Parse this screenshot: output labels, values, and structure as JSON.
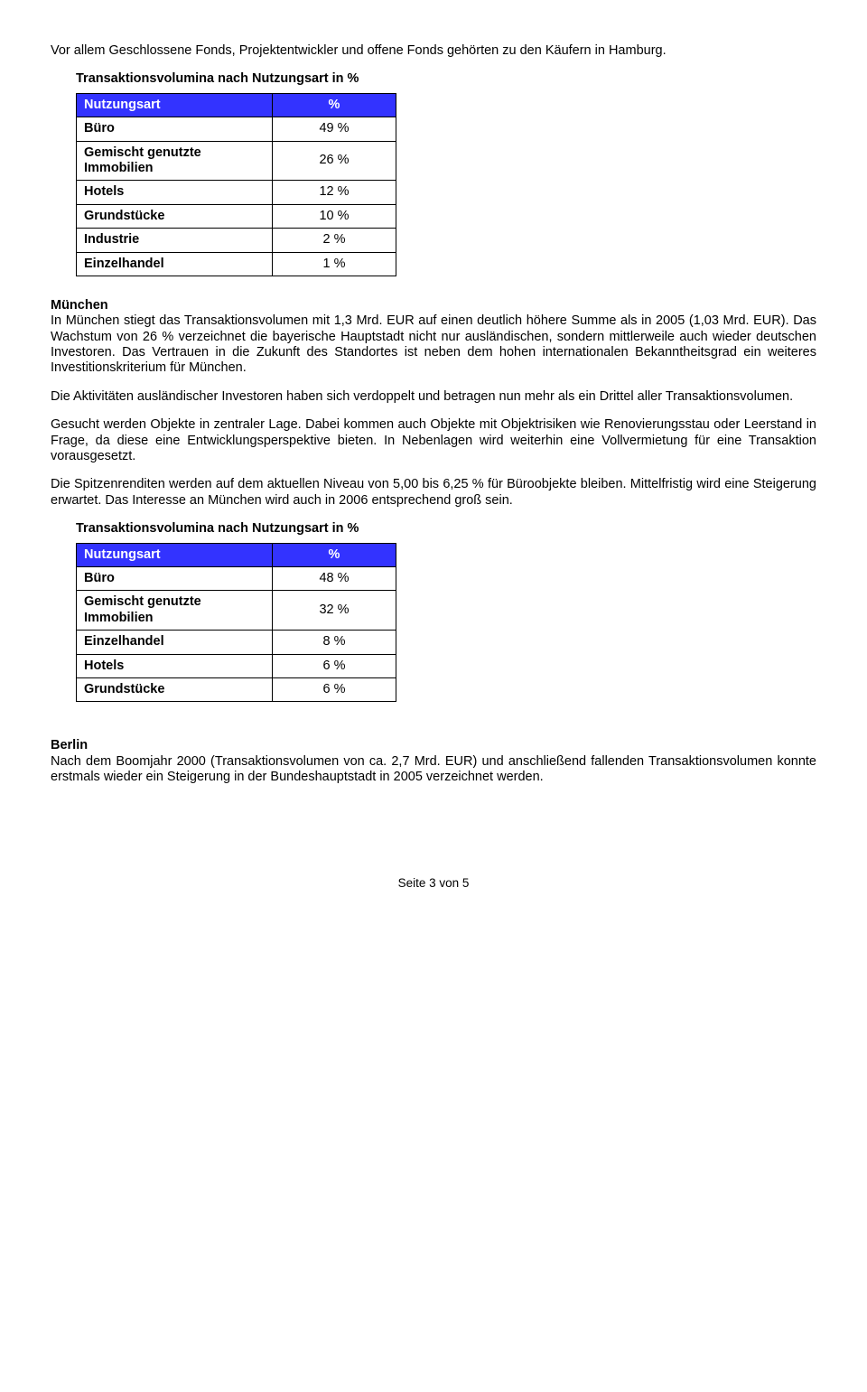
{
  "p1": "Vor allem Geschlossene Fonds, Projektentwickler und offene Fonds gehörten zu den Käufern in Hamburg.",
  "table1": {
    "title": "Transaktionsvolumina nach Nutzungsart in %",
    "col1": "Nutzungsart",
    "col2": "%",
    "col1_width": 200,
    "col2_width": 120,
    "rows": [
      {
        "label": "Büro",
        "value": "49 %"
      },
      {
        "label": "Gemischt genutzte Immobilien",
        "value": "26 %"
      },
      {
        "label": "Hotels",
        "value": "12 %"
      },
      {
        "label": "Grundstücke",
        "value": "10 %"
      },
      {
        "label": "Industrie",
        "value": "2 %"
      },
      {
        "label": "Einzelhandel",
        "value": "1 %"
      }
    ],
    "header_bg": "#3333ff",
    "header_fg": "#ffffff",
    "border_color": "#000000"
  },
  "munich_heading": "München",
  "p2": "In München stiegt das Transaktionsvolumen mit 1,3 Mrd. EUR auf einen deutlich höhere Summe als in 2005 (1,03 Mrd. EUR). Das Wachstum von 26 % verzeichnet die bayerische Hauptstadt nicht nur ausländischen, sondern mittlerweile auch wieder deutschen Investoren. Das Vertrauen in die Zukunft des Standortes ist neben dem hohen internationalen Bekanntheitsgrad ein weiteres Investitionskriterium für München.",
  "p3": "Die Aktivitäten ausländischer Investoren haben sich verdoppelt und betragen nun mehr als ein Drittel aller Transaktionsvolumen.",
  "p4": "Gesucht werden Objekte in zentraler Lage. Dabei kommen auch Objekte mit Objektrisiken wie Renovierungsstau oder Leerstand in Frage, da diese eine Entwicklungsperspektive bieten. In Nebenlagen wird weiterhin eine Vollvermietung für eine Transaktion vorausgesetzt.",
  "p5": "Die Spitzenrenditen werden auf dem aktuellen Niveau von 5,00 bis 6,25 % für Büroobjekte bleiben. Mittelfristig wird eine Steigerung erwartet. Das Interesse an München wird auch in 2006 entsprechend groß sein.",
  "table2": {
    "title": "Transaktionsvolumina nach Nutzungsart in %",
    "col1": "Nutzungsart",
    "col2": "%",
    "col1_width": 200,
    "col2_width": 120,
    "rows": [
      {
        "label": "Büro",
        "value": "48 %"
      },
      {
        "label": "Gemischt genutzte Immobilien",
        "value": "32 %"
      },
      {
        "label": "Einzelhandel",
        "value": "8 %"
      },
      {
        "label": "Hotels",
        "value": "6 %"
      },
      {
        "label": "Grundstücke",
        "value": "6 %"
      }
    ],
    "header_bg": "#3333ff",
    "header_fg": "#ffffff",
    "border_color": "#000000"
  },
  "berlin_heading": "Berlin",
  "p6": "Nach dem Boomjahr 2000 (Transaktionsvolumen von ca. 2,7 Mrd. EUR) und anschließend fallenden Transaktionsvolumen konnte erstmals wieder ein Steigerung in der Bundeshauptstadt in 2005 verzeichnet werden.",
  "footer": "Seite 3 von 5"
}
